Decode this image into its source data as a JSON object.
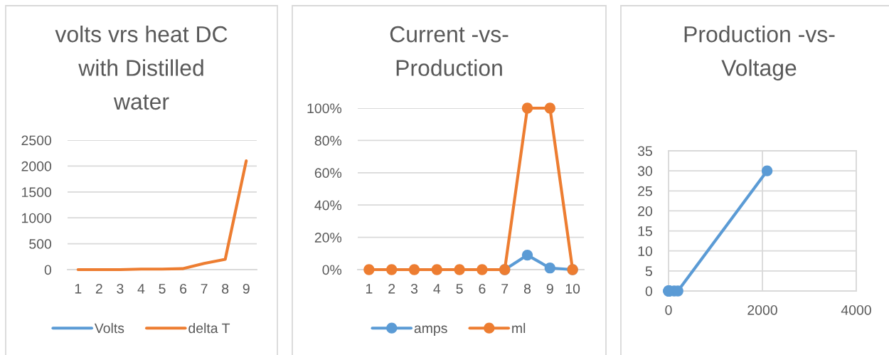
{
  "chart_data": [
    {
      "type": "line",
      "title": "volts vrs heat DC with Distilled water",
      "categories": [
        "1",
        "2",
        "3",
        "4",
        "5",
        "6",
        "7",
        "8",
        "9"
      ],
      "series": [
        {
          "name": "Volts",
          "color": "#5b9bd5",
          "values": [
            null,
            null,
            null,
            null,
            null,
            null,
            null,
            null,
            null
          ]
        },
        {
          "name": "delta T",
          "color": "#ed7d31",
          "values": [
            0,
            0,
            0,
            10,
            10,
            20,
            120,
            200,
            2100
          ]
        }
      ],
      "ylim": [
        0,
        2500
      ],
      "yticks": [
        0,
        500,
        1000,
        1500,
        2000,
        2500
      ],
      "grid": "y",
      "legend": "bottom",
      "marker": "none",
      "line_style": "solid"
    },
    {
      "type": "line",
      "title": "Current -vs- Production",
      "categories": [
        "1",
        "2",
        "3",
        "4",
        "5",
        "6",
        "7",
        "8",
        "9",
        "10"
      ],
      "series": [
        {
          "name": "amps",
          "color": "#5b9bd5",
          "values": [
            null,
            null,
            null,
            null,
            null,
            null,
            0,
            9,
            1,
            0
          ]
        },
        {
          "name": "ml",
          "color": "#ed7d31",
          "values": [
            0,
            0,
            0,
            0,
            0,
            0,
            0,
            100,
            100,
            0
          ]
        }
      ],
      "ylim": [
        0,
        100
      ],
      "yticks": [
        {
          "value": 0,
          "label": "0%"
        },
        {
          "value": 20,
          "label": "20%"
        },
        {
          "value": 40,
          "label": "40%"
        },
        {
          "value": 60,
          "label": "60%"
        },
        {
          "value": 80,
          "label": "80%"
        },
        {
          "value": 100,
          "label": "100%"
        }
      ],
      "grid": "y",
      "legend": "bottom",
      "marker": "circle",
      "line_style": "solid"
    },
    {
      "type": "line",
      "title": "Production -vs- Voltage",
      "x": [
        0,
        0,
        0,
        10,
        10,
        20,
        120,
        200,
        2100
      ],
      "series": [
        {
          "color": "#5b9bd5",
          "values": [
            0,
            0,
            0,
            0,
            0,
            0,
            0,
            0,
            30
          ]
        }
      ],
      "xlim": [
        0,
        4000
      ],
      "xticks": [
        0,
        2000,
        4000
      ],
      "ylim": [
        0,
        35
      ],
      "yticks": [
        0,
        5,
        10,
        15,
        20,
        25,
        30,
        35
      ],
      "grid": true,
      "marker": "circle",
      "line_style": "solid"
    }
  ]
}
